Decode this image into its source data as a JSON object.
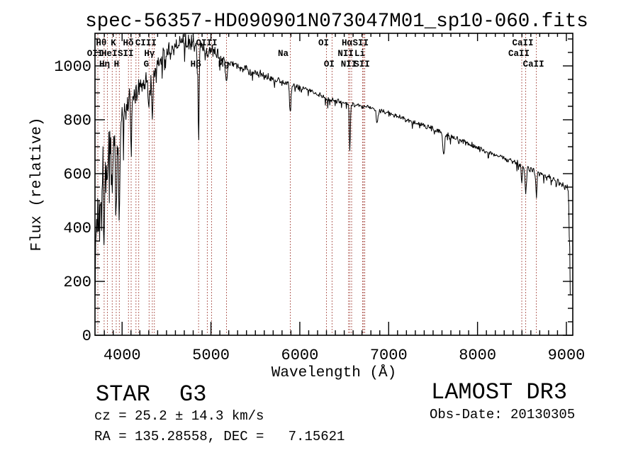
{
  "colors": {
    "background": "#ffffff",
    "spectrum": "#000000",
    "line_markers": "#a5463e",
    "text": "#000000"
  },
  "chart_data": {
    "type": "line",
    "title": "spec-56357-HD090901N073047M01_sp10-060.fits",
    "xlabel": "Wavelength (Å)",
    "ylabel": "Flux (relative)",
    "xlim": [
      3695,
      9072
    ],
    "ylim": [
      0,
      1121
    ],
    "xticks": [
      4000,
      5000,
      6000,
      7000,
      8000,
      9000
    ],
    "yticks": [
      0,
      200,
      400,
      600,
      800,
      1000
    ],
    "x_minor_step": 100,
    "y_minor_step": 50,
    "grid": false,
    "legend": false,
    "series": [
      {
        "name": "LAMOST spectrum",
        "envelope_points": [
          [
            3697,
            300
          ],
          [
            3720,
            420
          ],
          [
            3760,
            520
          ],
          [
            3800,
            620
          ],
          [
            3850,
            680
          ],
          [
            3900,
            730
          ],
          [
            3950,
            740
          ],
          [
            4000,
            800
          ],
          [
            4050,
            860
          ],
          [
            4120,
            860
          ],
          [
            4180,
            920
          ],
          [
            4250,
            940
          ],
          [
            4320,
            950
          ],
          [
            4400,
            1010
          ],
          [
            4500,
            1045
          ],
          [
            4600,
            1070
          ],
          [
            4700,
            1090
          ],
          [
            4800,
            1085
          ],
          [
            4900,
            1060
          ],
          [
            5000,
            1050
          ],
          [
            5100,
            1035
          ],
          [
            5250,
            1005
          ],
          [
            5400,
            985
          ],
          [
            5550,
            970
          ],
          [
            5700,
            950
          ],
          [
            5850,
            935
          ],
          [
            6000,
            922
          ],
          [
            6150,
            905
          ],
          [
            6300,
            880
          ],
          [
            6450,
            867
          ],
          [
            6600,
            855
          ],
          [
            6750,
            848
          ],
          [
            6900,
            836
          ],
          [
            7000,
            826
          ],
          [
            7150,
            808
          ],
          [
            7300,
            790
          ],
          [
            7450,
            772
          ],
          [
            7600,
            752
          ],
          [
            7750,
            730
          ],
          [
            7900,
            712
          ],
          [
            8050,
            692
          ],
          [
            8200,
            672
          ],
          [
            8350,
            652
          ],
          [
            8500,
            632
          ],
          [
            8650,
            610
          ],
          [
            8800,
            586
          ],
          [
            8950,
            562
          ],
          [
            9020,
            545
          ],
          [
            9035,
            400
          ],
          [
            9045,
            90
          ]
        ],
        "noise_amplitude": [
          [
            3697,
            230
          ],
          [
            3750,
            200
          ],
          [
            3800,
            150
          ],
          [
            3900,
            110
          ],
          [
            4000,
            85
          ],
          [
            4150,
            65
          ],
          [
            4300,
            50
          ],
          [
            4500,
            42
          ],
          [
            4700,
            40
          ],
          [
            5000,
            38
          ],
          [
            5200,
            28
          ],
          [
            5400,
            22
          ],
          [
            5700,
            16
          ],
          [
            6000,
            14
          ],
          [
            6300,
            12
          ],
          [
            6600,
            11
          ],
          [
            7000,
            11
          ],
          [
            7400,
            12
          ],
          [
            7600,
            16
          ],
          [
            7800,
            12
          ],
          [
            8200,
            13
          ],
          [
            8500,
            14
          ],
          [
            8800,
            18
          ],
          [
            9000,
            22
          ],
          [
            9045,
            26
          ]
        ],
        "absorption_dips": [
          [
            3798,
            170,
            6
          ],
          [
            3835,
            160,
            6
          ],
          [
            3889,
            200,
            6
          ],
          [
            3934,
            320,
            7
          ],
          [
            3969,
            290,
            7
          ],
          [
            4102,
            190,
            6
          ],
          [
            4304,
            80,
            9
          ],
          [
            4340,
            150,
            6
          ],
          [
            4861,
            330,
            6
          ],
          [
            5175,
            85,
            11
          ],
          [
            5893,
            105,
            8
          ],
          [
            6563,
            170,
            6
          ],
          [
            6870,
            50,
            9
          ],
          [
            7620,
            85,
            10
          ],
          [
            8498,
            70,
            6
          ],
          [
            8542,
            100,
            7
          ],
          [
            8662,
            95,
            7
          ]
        ]
      }
    ],
    "spectral_lines": [
      {
        "label": "OII",
        "wavelength": 3727,
        "row": 2
      },
      {
        "label": "Hθ",
        "wavelength": 3798,
        "row": 1
      },
      {
        "label": "Hη",
        "wavelength": 3835,
        "row": 3
      },
      {
        "label": "HeI",
        "wavelength": 3889,
        "row": 2
      },
      {
        "label": "K",
        "wavelength": 3934,
        "row": 1
      },
      {
        "label": "H",
        "wavelength": 3969,
        "row": 3
      },
      {
        "label": "SII",
        "wavelength": 4072,
        "row": 2
      },
      {
        "label": "Hδ",
        "wavelength": 4102,
        "row": 1
      },
      {
        "label": "",
        "wavelength": 4156,
        "row": 0
      },
      {
        "label": "",
        "wavelength": 4187,
        "row": 0
      },
      {
        "label": "CIII",
        "wavelength": 4300,
        "row": 1,
        "label_only": true
      },
      {
        "label": "G",
        "wavelength": 4304,
        "row": 3
      },
      {
        "label": "Hγ",
        "wavelength": 4340,
        "row": 2
      },
      {
        "label": "",
        "wavelength": 4363,
        "row": 0
      },
      {
        "label": "Hβ",
        "wavelength": 4861,
        "row": 3
      },
      {
        "label": "",
        "wavelength": 4959,
        "row": 0
      },
      {
        "label": "OIII",
        "wavelength": 4983,
        "row": 1,
        "label_only": true
      },
      {
        "label": "",
        "wavelength": 5007,
        "row": 0
      },
      {
        "label": "Mg",
        "wavelength": 5175,
        "row": 3
      },
      {
        "label": "Na",
        "wavelength": 5893,
        "row": 2,
        "dx": -10
      },
      {
        "label": "OI",
        "wavelength": 6300,
        "row": 1
      },
      {
        "label": "OI",
        "wavelength": 6363,
        "row": 3
      },
      {
        "label": "NII",
        "wavelength": 6548,
        "row": 2
      },
      {
        "label": "Hα",
        "wavelength": 6563,
        "row": 1
      },
      {
        "label": "NII",
        "wavelength": 6583,
        "row": 3
      },
      {
        "label": "Li",
        "wavelength": 6707,
        "row": 2
      },
      {
        "label": "SII",
        "wavelength": 6717,
        "row": 1
      },
      {
        "label": "SII",
        "wavelength": 6731,
        "row": 3
      },
      {
        "label": "CaII",
        "wavelength": 8498,
        "row": 2
      },
      {
        "label": "CaII",
        "wavelength": 8542,
        "row": 1
      },
      {
        "label": "CaII",
        "wavelength": 8662,
        "row": 3
      }
    ]
  },
  "annotations": {
    "class": "STAR",
    "subclass": "G3",
    "cz": "cz = 25.2 ± 14.3 km/s",
    "ra_dec": "RA = 135.28558, DEC =   7.15621",
    "survey": "LAMOST DR3",
    "obs_date": "Obs-Date: 20130305"
  }
}
